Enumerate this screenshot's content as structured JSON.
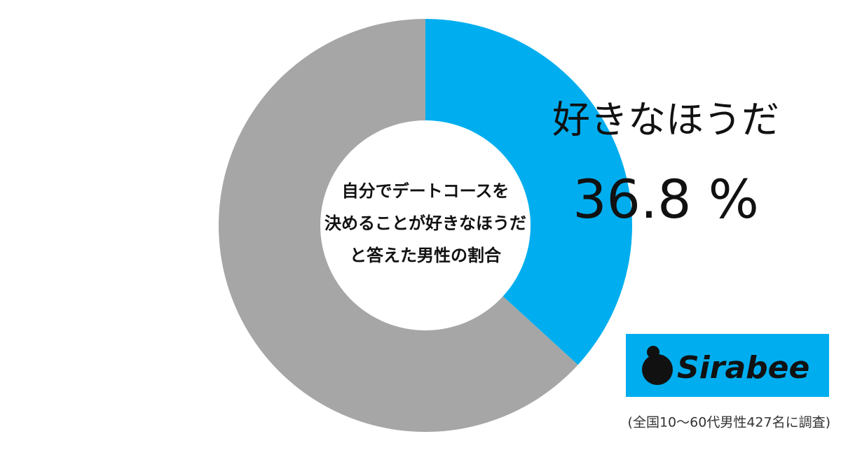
{
  "chart_data": {
    "type": "donut",
    "categories": [
      "好きなほうだ",
      null
    ],
    "values": [
      36.8,
      63.2
    ],
    "value_labels": [
      "36.8 %",
      null
    ],
    "colors": [
      "#00aeef",
      "#a6a6a6"
    ],
    "center_text": [
      "自分でデートコースを",
      "決めることが好きなほうだ",
      "と答えた男性の割合"
    ],
    "logo": "Sirabee",
    "note": "(全国10〜60代男性427名に調査)"
  }
}
